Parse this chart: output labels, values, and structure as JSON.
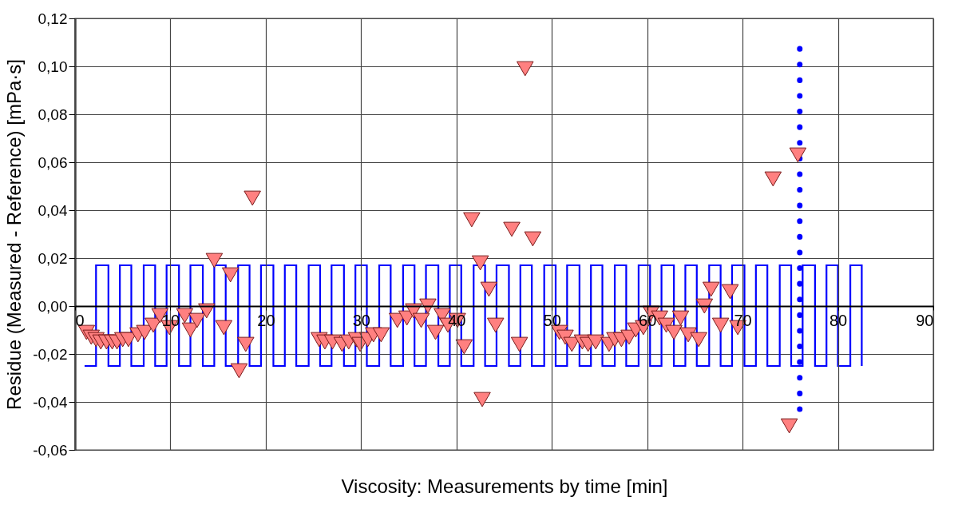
{
  "chart_data": {
    "type": "scatter",
    "xlabel": "Viscosity: Measurements by time [min]",
    "ylabel": "Residue (Measured - Reference) [mPa·s]",
    "xlim": [
      0,
      90
    ],
    "xticks": [
      0,
      10,
      20,
      30,
      40,
      50,
      60,
      70,
      80,
      90
    ],
    "ylim": [
      -0.06,
      0.12
    ],
    "yticks": [
      {
        "value": -0.06,
        "label": "-0,06"
      },
      {
        "value": -0.04,
        "label": "-0,04"
      },
      {
        "value": -0.02,
        "label": "-0,02"
      },
      {
        "value": 0,
        "label": "0,00"
      },
      {
        "value": 0.02,
        "label": "0,02"
      },
      {
        "value": 0.04,
        "label": "0,04"
      },
      {
        "value": 0.06,
        "label": "0,06"
      },
      {
        "value": 0.08,
        "label": "0,08"
      },
      {
        "value": 0.1,
        "label": "0,10"
      },
      {
        "value": 0.12,
        "label": "0,12"
      }
    ],
    "grid": true,
    "series": [
      {
        "type": "step",
        "color": "#0000ff",
        "x": [
          1.0,
          2.2,
          3.5,
          4.7,
          5.9,
          7.2,
          8.4,
          9.6,
          10.9,
          12.1,
          13.4,
          14.6,
          15.8,
          17.1,
          18.3,
          19.5,
          20.8,
          22.0,
          23.2,
          24.5,
          25.7,
          26.9,
          28.2,
          29.4,
          30.6,
          31.9,
          33.1,
          34.4,
          35.6,
          36.8,
          38.1,
          39.3,
          40.5,
          41.8,
          43.0,
          44.2,
          45.5,
          46.7,
          47.9,
          49.2,
          50.4,
          51.6,
          52.9,
          54.1,
          55.3,
          56.6,
          57.8,
          59.1,
          60.3,
          61.5,
          62.8,
          64.0,
          65.2,
          66.5,
          67.7,
          68.9,
          70.2,
          71.4,
          72.6,
          73.9,
          75.1,
          76.3,
          77.6,
          78.8,
          80.0,
          81.3,
          82.5
        ],
        "values": [
          -0.025,
          0.017,
          -0.025,
          0.017,
          -0.025,
          0.017,
          -0.025,
          0.017,
          -0.025,
          0.017,
          -0.025,
          0.017,
          -0.025,
          0.017,
          -0.025,
          0.017,
          -0.025,
          0.017,
          -0.025,
          0.017,
          -0.025,
          0.017,
          -0.025,
          0.017,
          -0.025,
          0.017,
          -0.025,
          0.017,
          -0.025,
          0.017,
          -0.025,
          0.017,
          -0.025,
          0.017,
          -0.025,
          0.017,
          -0.025,
          0.017,
          -0.025,
          0.017,
          -0.025,
          0.017,
          -0.025,
          0.017,
          -0.025,
          0.017,
          -0.025,
          0.017,
          -0.025,
          0.017,
          -0.025,
          0.017,
          -0.025,
          0.017,
          -0.025,
          0.017,
          -0.025,
          0.017,
          -0.025,
          0.017,
          -0.025,
          0.017,
          -0.025,
          0.017,
          -0.025,
          0.017,
          -0.025
        ]
      },
      {
        "type": "line",
        "color": "#0000ff",
        "line_style": "dotted",
        "x": [
          76.0,
          76.0
        ],
        "values": [
          -0.043,
          0.109
        ]
      },
      {
        "color": "#ff8080",
        "marker": "triangle",
        "x": [
          1.2,
          1.7,
          2.2,
          2.7,
          3.3,
          3.9,
          4.4,
          5.0,
          5.6,
          6.6,
          7.3,
          8.2,
          8.9,
          9.9,
          11.5,
          12.1,
          12.8,
          13.8,
          14.6,
          15.6,
          16.3,
          17.2,
          17.9,
          18.6,
          25.6,
          26.2,
          27.0,
          28.0,
          28.7,
          29.5,
          29.9,
          30.7,
          31.3,
          32.1,
          33.8,
          34.8,
          35.5,
          36.3,
          37.0,
          37.8,
          38.5,
          39.1,
          40.1,
          40.8,
          41.6,
          42.5,
          42.7,
          43.4,
          44.1,
          45.8,
          46.6,
          47.2,
          48.0,
          50.8,
          51.4,
          52.1,
          53.2,
          53.8,
          54.6,
          56.0,
          56.6,
          57.3,
          58.1,
          58.8,
          59.6,
          60.4,
          61.3,
          62.0,
          62.8,
          63.5,
          64.3,
          65.4,
          66.0,
          66.7,
          67.7,
          68.7,
          69.5,
          73.2,
          74.9,
          75.8
        ],
        "values": [
          -0.011,
          -0.013,
          -0.014,
          -0.015,
          -0.015,
          -0.015,
          -0.015,
          -0.014,
          -0.014,
          -0.012,
          -0.011,
          -0.008,
          -0.004,
          -0.009,
          -0.004,
          -0.01,
          -0.006,
          -0.002,
          0.019,
          -0.009,
          0.013,
          -0.027,
          -0.016,
          0.045,
          -0.014,
          -0.015,
          -0.015,
          -0.016,
          -0.015,
          -0.014,
          -0.016,
          -0.014,
          -0.012,
          -0.012,
          -0.006,
          -0.005,
          -0.002,
          -0.006,
          0.0,
          -0.011,
          -0.004,
          -0.008,
          -0.006,
          -0.017,
          0.036,
          0.018,
          -0.039,
          0.007,
          -0.008,
          0.032,
          -0.016,
          0.099,
          0.028,
          -0.011,
          -0.013,
          -0.016,
          -0.015,
          -0.016,
          -0.015,
          -0.016,
          -0.014,
          -0.014,
          -0.013,
          -0.01,
          -0.009,
          -0.003,
          -0.005,
          -0.008,
          -0.011,
          -0.005,
          -0.012,
          -0.014,
          0.0,
          0.007,
          -0.008,
          0.006,
          -0.009,
          0.053,
          -0.05,
          0.063
        ]
      }
    ]
  }
}
